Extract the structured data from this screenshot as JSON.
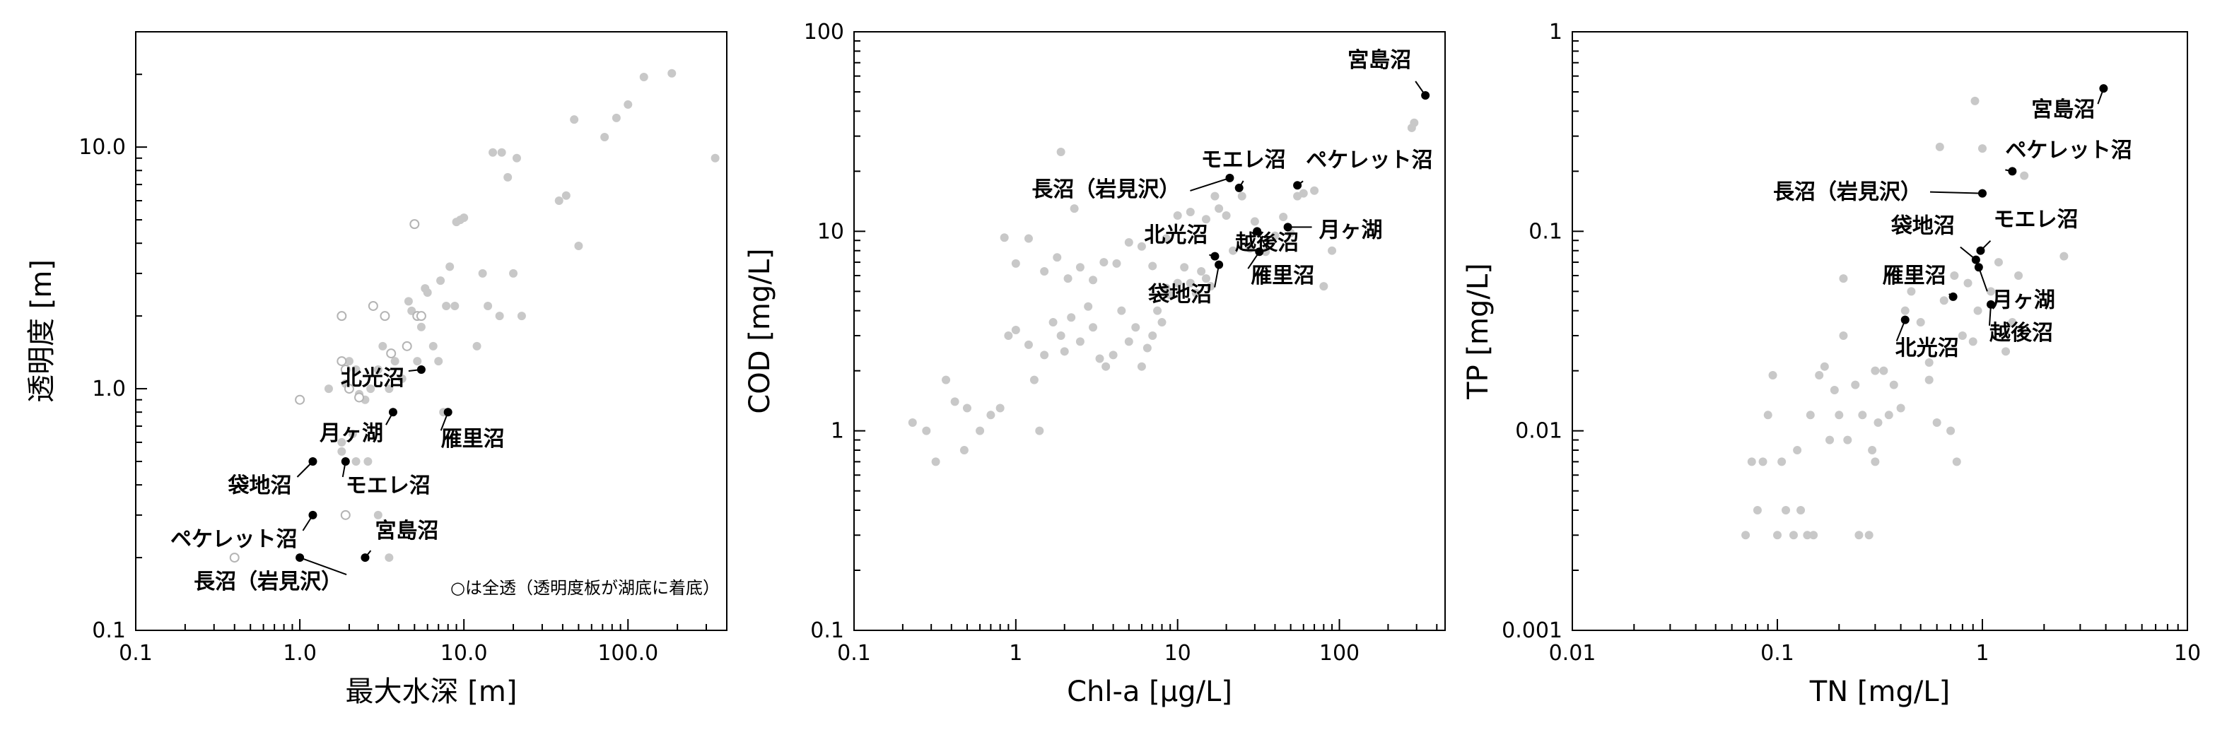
{
  "chart_data": [
    {
      "type": "scatter",
      "id": "depth",
      "xlabel": "最大水深 [m]",
      "ylabel": "透明度 [m]",
      "xscale": "log",
      "yscale": "log",
      "xlim": [
        0.1,
        400
      ],
      "ylim": [
        0.1,
        30
      ],
      "xticks": [
        0.1,
        1.0,
        10.0,
        100.0
      ],
      "xtick_labels": [
        "0.1",
        "1.0",
        "10.0",
        "100.0"
      ],
      "yticks": [
        0.1,
        1.0,
        10.0
      ],
      "ytick_labels": [
        "0.1",
        "1.0",
        "10.0"
      ],
      "note": "○は全透（透明度板が湖底に着底）",
      "points": [
        [
          1.5,
          1.0
        ],
        [
          1.9,
          1.05
        ],
        [
          2.0,
          1.3
        ],
        [
          2.2,
          1.2
        ],
        [
          2.3,
          0.95
        ],
        [
          2.5,
          0.9
        ],
        [
          2.7,
          1.0
        ],
        [
          3.0,
          1.2
        ],
        [
          3.2,
          1.5
        ],
        [
          3.5,
          1.0
        ],
        [
          3.8,
          1.3
        ],
        [
          4.2,
          1.1
        ],
        [
          4.5,
          1.5
        ],
        [
          4.8,
          2.1
        ],
        [
          5.2,
          1.3
        ],
        [
          5.5,
          1.8
        ],
        [
          6.0,
          2.5
        ],
        [
          6.5,
          1.5
        ],
        [
          7.0,
          1.3
        ],
        [
          7.2,
          2.8
        ],
        [
          7.8,
          2.2
        ],
        [
          8.2,
          3.2
        ],
        [
          8.8,
          2.2
        ],
        [
          9.0,
          4.9
        ],
        [
          9.5,
          5.0
        ],
        [
          10.0,
          5.1
        ],
        [
          7.5,
          0.8
        ],
        [
          2.2,
          0.5
        ],
        [
          2.6,
          0.5
        ],
        [
          3.0,
          0.3
        ],
        [
          3.5,
          0.2
        ],
        [
          12.0,
          1.5
        ],
        [
          13.0,
          3.0
        ],
        [
          14.0,
          2.2
        ],
        [
          15.0,
          9.5
        ],
        [
          16.5,
          2.0
        ],
        [
          17.0,
          9.5
        ],
        [
          18.5,
          7.5
        ],
        [
          20.0,
          3.0
        ],
        [
          21.0,
          9.0
        ],
        [
          22.5,
          2.0
        ],
        [
          38.0,
          6.0
        ],
        [
          42.0,
          6.3
        ],
        [
          47.0,
          13.0
        ],
        [
          50.0,
          3.9
        ],
        [
          72.0,
          11.0
        ],
        [
          85.0,
          13.2
        ],
        [
          100.0,
          15.0
        ],
        [
          125.0,
          19.5
        ],
        [
          185.0,
          20.2
        ],
        [
          340.0,
          9.0
        ],
        [
          4.6,
          2.3
        ],
        [
          5.8,
          2.6
        ],
        [
          1.8,
          0.6
        ],
        [
          1.8,
          0.55
        ],
        [
          2.1,
          0.65
        ]
      ],
      "hollow_points": [
        [
          0.4,
          0.2
        ],
        [
          1.0,
          0.9
        ],
        [
          1.8,
          1.3
        ],
        [
          1.8,
          2.0
        ],
        [
          1.9,
          0.3
        ],
        [
          2.0,
          1.0
        ],
        [
          2.3,
          0.92
        ],
        [
          2.8,
          2.2
        ],
        [
          3.3,
          2.0
        ],
        [
          3.6,
          1.4
        ],
        [
          4.5,
          1.5
        ],
        [
          5.0,
          4.8
        ],
        [
          5.2,
          2.0
        ],
        [
          5.5,
          2.0
        ],
        [
          1.9,
          1.2
        ]
      ],
      "highlights": [
        {
          "label": "北光沼",
          "x": 5.5,
          "y": 1.2
        },
        {
          "label": "月ヶ湖",
          "x": 3.7,
          "y": 0.8
        },
        {
          "label": "雁里沼",
          "x": 8.0,
          "y": 0.8
        },
        {
          "label": "袋地沼",
          "x": 1.2,
          "y": 0.5
        },
        {
          "label": "モエレ沼",
          "x": 1.9,
          "y": 0.5
        },
        {
          "label": "ペケレット沼",
          "x": 1.2,
          "y": 0.3
        },
        {
          "label": "宮島沼",
          "x": 2.5,
          "y": 0.2
        },
        {
          "label": "長沼（岩見沢）",
          "x": 1.0,
          "y": 0.2
        }
      ]
    },
    {
      "type": "scatter",
      "id": "chla",
      "xlabel": "Chl-a [µg/L]",
      "ylabel": "COD [mg/L]",
      "xscale": "log",
      "yscale": "log",
      "xlim": [
        0.1,
        450
      ],
      "ylim": [
        0.1,
        100
      ],
      "xticks": [
        0.1,
        1,
        10,
        100
      ],
      "xtick_labels": [
        "0.1",
        "1",
        "10",
        "100"
      ],
      "yticks": [
        0.1,
        1,
        10,
        100
      ],
      "ytick_labels": [
        "0.1",
        "1",
        "10",
        "100"
      ],
      "points": [
        [
          0.23,
          1.1
        ],
        [
          0.28,
          1.0
        ],
        [
          0.32,
          0.7
        ],
        [
          0.37,
          1.8
        ],
        [
          0.42,
          1.4
        ],
        [
          0.48,
          0.8
        ],
        [
          0.5,
          1.3
        ],
        [
          0.6,
          1.0
        ],
        [
          0.7,
          1.2
        ],
        [
          0.8,
          1.3
        ],
        [
          0.9,
          3.0
        ],
        [
          1.0,
          3.2
        ],
        [
          1.2,
          2.7
        ],
        [
          1.3,
          1.8
        ],
        [
          1.4,
          1.0
        ],
        [
          1.5,
          2.4
        ],
        [
          1.7,
          3.5
        ],
        [
          1.9,
          3.0
        ],
        [
          2.0,
          2.5
        ],
        [
          2.2,
          3.7
        ],
        [
          2.5,
          2.8
        ],
        [
          2.8,
          4.2
        ],
        [
          3.0,
          3.3
        ],
        [
          3.3,
          2.3
        ],
        [
          3.6,
          2.1
        ],
        [
          4.0,
          2.4
        ],
        [
          4.5,
          4.0
        ],
        [
          5.0,
          2.8
        ],
        [
          5.5,
          3.3
        ],
        [
          6.0,
          2.1
        ],
        [
          6.5,
          2.6
        ],
        [
          7.0,
          3.0
        ],
        [
          7.5,
          4.0
        ],
        [
          8.0,
          3.5
        ],
        [
          8.5,
          5.2
        ],
        [
          9.0,
          4.8
        ],
        [
          10.0,
          5.5
        ],
        [
          11.0,
          6.6
        ],
        [
          12.0,
          5.5
        ],
        [
          13.0,
          4.9
        ],
        [
          14.0,
          6.3
        ],
        [
          15.0,
          5.8
        ],
        [
          16.0,
          5.3
        ],
        [
          0.85,
          9.3
        ],
        [
          1.0,
          6.9
        ],
        [
          1.2,
          9.2
        ],
        [
          1.5,
          6.3
        ],
        [
          1.8,
          7.4
        ],
        [
          2.1,
          5.8
        ],
        [
          2.5,
          6.6
        ],
        [
          3.0,
          5.7
        ],
        [
          3.5,
          7.0
        ],
        [
          4.2,
          6.9
        ],
        [
          5.0,
          8.8
        ],
        [
          6.0,
          8.4
        ],
        [
          7.0,
          6.7
        ],
        [
          8.5,
          9.2
        ],
        [
          10.0,
          12.0
        ],
        [
          12.0,
          12.5
        ],
        [
          15.0,
          11.5
        ],
        [
          18.0,
          13.0
        ],
        [
          20.0,
          12.0
        ],
        [
          22.0,
          8.0
        ],
        [
          25.0,
          15.0
        ],
        [
          28.0,
          8.2
        ],
        [
          30.0,
          11.2
        ],
        [
          35.0,
          7.9
        ],
        [
          40.0,
          9.5
        ],
        [
          45.0,
          11.8
        ],
        [
          50.0,
          9.8
        ],
        [
          55.0,
          15.0
        ],
        [
          60.0,
          15.5
        ],
        [
          70.0,
          16.0
        ],
        [
          80.0,
          5.3
        ],
        [
          90.0,
          8.0
        ],
        [
          280.0,
          33.0
        ],
        [
          290.0,
          35.0
        ],
        [
          1.9,
          25.0
        ],
        [
          2.3,
          13.0
        ],
        [
          17.0,
          15.0
        ]
      ],
      "highlights": [
        {
          "label": "宮島沼",
          "x": 340,
          "y": 48
        },
        {
          "label": "モエレ沼",
          "x": 24,
          "y": 16.5
        },
        {
          "label": "ペケレット沼",
          "x": 55,
          "y": 17
        },
        {
          "label": "長沼（岩見沢）",
          "x": 21,
          "y": 18.5
        },
        {
          "label": "越後沼",
          "x": 31,
          "y": 10
        },
        {
          "label": "月ヶ湖",
          "x": 48,
          "y": 10.5
        },
        {
          "label": "北光沼",
          "x": 17,
          "y": 7.5
        },
        {
          "label": "雁里沼",
          "x": 32,
          "y": 7.9
        },
        {
          "label": "袋地沼",
          "x": 18,
          "y": 6.8
        }
      ]
    },
    {
      "type": "scatter",
      "id": "nutrients",
      "xlabel": "TN [mg/L]",
      "ylabel": "TP [mg/L]",
      "xscale": "log",
      "yscale": "log",
      "xlim": [
        0.01,
        10
      ],
      "ylim": [
        0.001,
        1
      ],
      "xticks": [
        0.01,
        0.1,
        1,
        10
      ],
      "xtick_labels": [
        "0.01",
        "0.1",
        "1",
        "10"
      ],
      "yticks": [
        0.001,
        0.01,
        0.1,
        1
      ],
      "ytick_labels": [
        "0.001",
        "0.01",
        "0.1",
        "1"
      ],
      "points": [
        [
          0.07,
          0.003
        ],
        [
          0.075,
          0.007
        ],
        [
          0.08,
          0.004
        ],
        [
          0.085,
          0.007
        ],
        [
          0.09,
          0.012
        ],
        [
          0.095,
          0.019
        ],
        [
          0.1,
          0.003
        ],
        [
          0.105,
          0.007
        ],
        [
          0.11,
          0.004
        ],
        [
          0.12,
          0.003
        ],
        [
          0.125,
          0.008
        ],
        [
          0.13,
          0.004
        ],
        [
          0.14,
          0.003
        ],
        [
          0.145,
          0.012
        ],
        [
          0.15,
          0.003
        ],
        [
          0.16,
          0.019
        ],
        [
          0.17,
          0.021
        ],
        [
          0.18,
          0.009
        ],
        [
          0.19,
          0.016
        ],
        [
          0.2,
          0.012
        ],
        [
          0.21,
          0.03
        ],
        [
          0.22,
          0.009
        ],
        [
          0.24,
          0.017
        ],
        [
          0.25,
          0.003
        ],
        [
          0.26,
          0.012
        ],
        [
          0.28,
          0.003
        ],
        [
          0.29,
          0.008
        ],
        [
          0.3,
          0.007
        ],
        [
          0.31,
          0.011
        ],
        [
          0.33,
          0.02
        ],
        [
          0.35,
          0.012
        ],
        [
          0.37,
          0.017
        ],
        [
          0.4,
          0.013
        ],
        [
          0.42,
          0.04
        ],
        [
          0.45,
          0.05
        ],
        [
          0.5,
          0.035
        ],
        [
          0.55,
          0.022
        ],
        [
          0.6,
          0.011
        ],
        [
          0.65,
          0.045
        ],
        [
          0.7,
          0.01
        ],
        [
          0.75,
          0.007
        ],
        [
          0.8,
          0.03
        ],
        [
          0.85,
          0.055
        ],
        [
          0.9,
          0.028
        ],
        [
          0.95,
          0.04
        ],
        [
          0.92,
          0.45
        ],
        [
          1.0,
          0.26
        ],
        [
          1.1,
          0.05
        ],
        [
          1.2,
          0.07
        ],
        [
          1.3,
          0.025
        ],
        [
          1.4,
          0.035
        ],
        [
          1.5,
          0.06
        ],
        [
          1.6,
          0.19
        ],
        [
          2.5,
          0.075
        ],
        [
          0.62,
          0.265
        ],
        [
          0.73,
          0.06
        ],
        [
          0.21,
          0.058
        ],
        [
          0.3,
          0.02
        ],
        [
          0.55,
          0.018
        ]
      ],
      "highlights": [
        {
          "label": "宮島沼",
          "x": 3.9,
          "y": 0.52
        },
        {
          "label": "ペケレット沼",
          "x": 1.4,
          "y": 0.2
        },
        {
          "label": "長沼（岩見沢）",
          "x": 1.0,
          "y": 0.155
        },
        {
          "label": "袋地沼",
          "x": 0.93,
          "y": 0.072
        },
        {
          "label": "モエレ沼",
          "x": 0.98,
          "y": 0.08
        },
        {
          "label": "月ヶ湖",
          "x": 0.96,
          "y": 0.066
        },
        {
          "label": "雁里沼",
          "x": 0.72,
          "y": 0.047
        },
        {
          "label": "越後沼",
          "x": 1.1,
          "y": 0.043
        },
        {
          "label": "北光沼",
          "x": 0.42,
          "y": 0.036
        }
      ]
    }
  ]
}
